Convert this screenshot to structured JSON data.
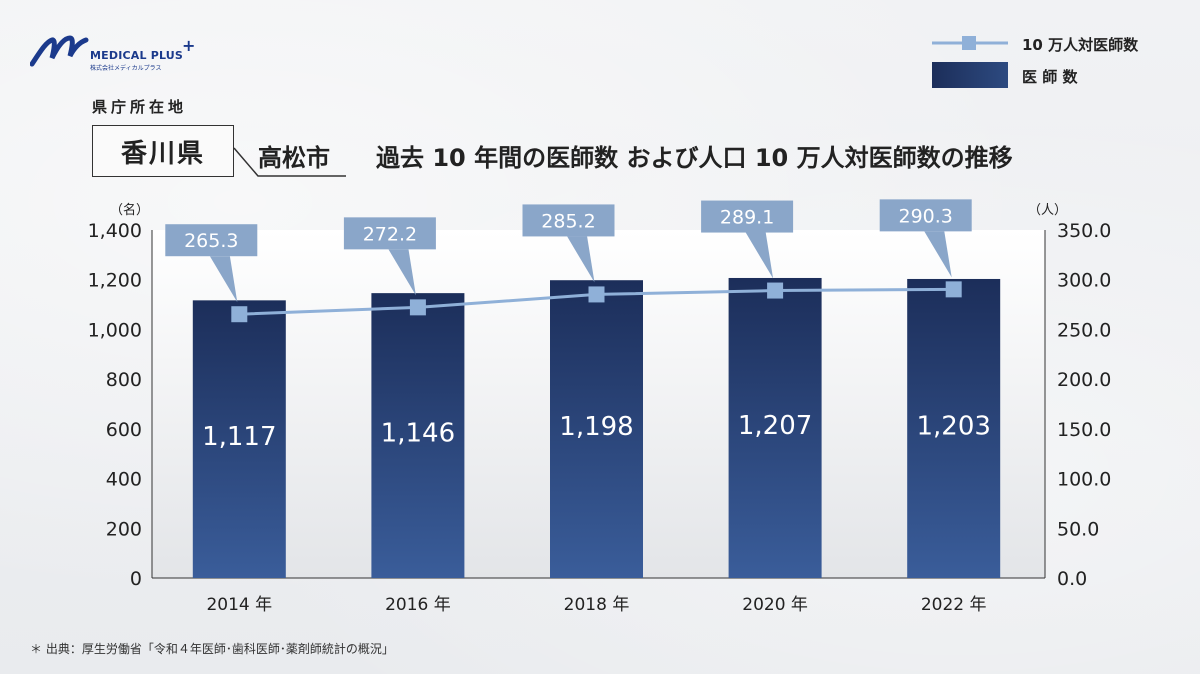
{
  "logo": {
    "name": "MEDICAL PLUS",
    "sub": "株式会社メディカルプラス",
    "plus": "+"
  },
  "header": {
    "pref_caption": "県庁所在地",
    "prefecture": "香川県",
    "city": "高松市",
    "title": "過去 10 年間の医師数 および人口 10 万人対医師数の推移"
  },
  "legend": {
    "line_label": "10 万人対医師数",
    "bar_label": "医 師 数"
  },
  "source": "＊ 出典：厚生労働省「令和４年医師･歯科医師･薬剤師統計の概況」",
  "colors": {
    "bar_top": "#1c2e5a",
    "bar_bottom": "#3a5d9a",
    "line": "#8fb0d8",
    "marker": "#8fb0d8",
    "callout": "#8aa6c9",
    "plot_top": "#ffffff",
    "plot_bottom": "#e3e5e8"
  },
  "chart_data": {
    "type": "bar",
    "categories": [
      "2014 年",
      "2016 年",
      "2018 年",
      "2020 年",
      "2022 年"
    ],
    "series": [
      {
        "name": "医 師 数",
        "type": "bar",
        "axis": "left",
        "values": [
          1117,
          1146,
          1198,
          1207,
          1203
        ],
        "labels": [
          "1,117",
          "1,146",
          "1,198",
          "1,207",
          "1,203"
        ]
      },
      {
        "name": "10 万人対医師数",
        "type": "line",
        "axis": "right",
        "values": [
          265.3,
          272.2,
          285.2,
          289.1,
          290.3
        ],
        "labels": [
          "265.3",
          "272.2",
          "285.2",
          "289.1",
          "290.3"
        ]
      }
    ],
    "y_left": {
      "unit": "（名）",
      "min": 0,
      "max": 1400,
      "ticks": [
        0,
        200,
        400,
        600,
        800,
        1000,
        1200,
        1400
      ],
      "tick_labels": [
        "0",
        "200",
        "400",
        "600",
        "800",
        "1,000",
        "1,200",
        "1,400"
      ]
    },
    "y_right": {
      "unit": "（人）",
      "min": 0,
      "max": 350,
      "ticks": [
        0,
        50,
        100,
        150,
        200,
        250,
        300,
        350
      ],
      "tick_labels": [
        "0.0",
        "50.0",
        "100.0",
        "150.0",
        "200.0",
        "250.0",
        "300.0",
        "350.0"
      ]
    },
    "grid": false,
    "legend_position": "top-right"
  }
}
